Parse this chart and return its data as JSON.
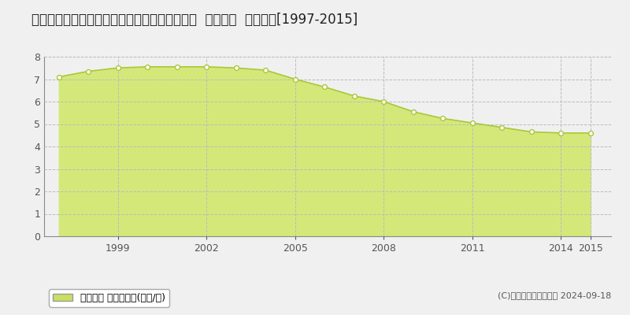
{
  "title": "山形県天童市大字高擶字西楯町南７０番外１筆  基準地価  地価推移[1997-2015]",
  "years": [
    1997,
    1998,
    1999,
    2000,
    2001,
    2002,
    2003,
    2004,
    2005,
    2006,
    2007,
    2008,
    2009,
    2010,
    2011,
    2012,
    2013,
    2014,
    2015
  ],
  "values": [
    7.1,
    7.35,
    7.5,
    7.55,
    7.55,
    7.55,
    7.5,
    7.4,
    7.0,
    6.65,
    6.25,
    6.0,
    5.55,
    5.25,
    5.05,
    4.85,
    4.65,
    4.6,
    4.6
  ],
  "line_color": "#a8c83a",
  "fill_color": "#d4e87a",
  "marker_color": "#ffffff",
  "marker_edge_color": "#a8c83a",
  "bg_color": "#f0f0f0",
  "plot_bg_color": "#f0f0f0",
  "grid_color": "#bbbbbb",
  "axis_color": "#555555",
  "ylim": [
    0,
    8
  ],
  "yticks": [
    0,
    1,
    2,
    3,
    4,
    5,
    6,
    7,
    8
  ],
  "xtick_positions": [
    1999,
    2002,
    2005,
    2008,
    2011,
    2014,
    2015
  ],
  "legend_label": "基準地価 平均坪単価(万円/坪)",
  "legend_color": "#c8e060",
  "copyright_text": "(C)土地価格ドットコム 2024-09-18",
  "title_fontsize": 12,
  "tick_fontsize": 9,
  "legend_fontsize": 9,
  "copyright_fontsize": 8
}
